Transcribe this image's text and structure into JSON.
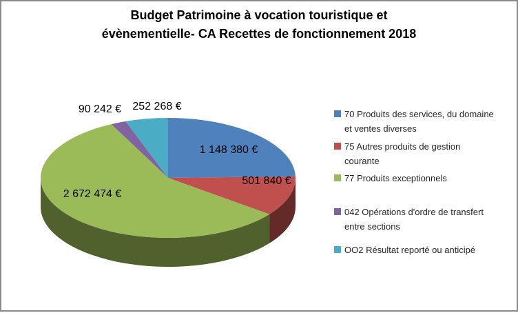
{
  "window": {
    "background": "#FFFFFF",
    "border_color": "#8A8A8A"
  },
  "chart_data": {
    "type": "pie",
    "style": "3d",
    "title": "Budget Patrimoine à vocation touristique et évènementielle- CA Recettes de fonctionnement 2018",
    "start_angle_deg": 0,
    "direction": "clockwise",
    "legend_position": "right",
    "grid": false,
    "slices": [
      {
        "legend": "70 Produits des services, du domaine et ventes diverses",
        "value": 1148380,
        "label": "1 148 380 €",
        "color": "#4F81BD"
      },
      {
        "legend": "75 Autres produits de gestion courante",
        "value": 501840,
        "label": "501 840 €",
        "color": "#C0504D"
      },
      {
        "legend": "77 Produits exceptionnels",
        "value": 2672474,
        "label": "2 672 474 €",
        "color": "#9BBB59"
      },
      {
        "legend": "042 Opérations d'ordre de transfert entre sections",
        "value": 90242,
        "label": "90 242 €",
        "color": "#8064A2"
      },
      {
        "legend": "OO2 Résultat reporté ou anticipé",
        "value": 252268,
        "label": "252 268 €",
        "color": "#4BACC6"
      }
    ]
  }
}
